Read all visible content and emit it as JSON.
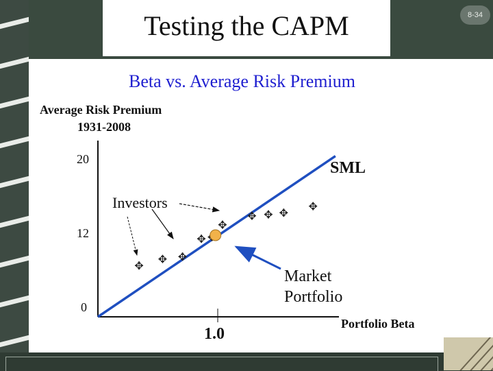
{
  "slide": {
    "title": "Testing the CAPM",
    "number": "8-34"
  },
  "chart_data": {
    "type": "scatter",
    "title": "Beta vs. Average Risk Premium",
    "ylabel_line1": "Average Risk Premium",
    "ylabel_line2": "1931-2008",
    "xlabel": "Portfolio Beta",
    "y_ticks": [
      "20",
      "12",
      "0"
    ],
    "x_ticks": [
      "1.0"
    ],
    "xlim": [
      0,
      2.05
    ],
    "ylim": [
      0,
      23
    ],
    "line": {
      "name": "SML",
      "x": [
        0,
        2.02
      ],
      "y": [
        0,
        19.7
      ]
    },
    "market_portfolio": {
      "x": 1.0,
      "y": 10.0
    },
    "investors_points": [
      {
        "x": 0.35,
        "y": 6.2
      },
      {
        "x": 0.55,
        "y": 7.0
      },
      {
        "x": 0.72,
        "y": 7.3
      },
      {
        "x": 0.88,
        "y": 9.5
      },
      {
        "x": 0.97,
        "y": 9.7
      },
      {
        "x": 1.06,
        "y": 11.2
      },
      {
        "x": 1.31,
        "y": 12.3
      },
      {
        "x": 1.45,
        "y": 12.5
      },
      {
        "x": 1.58,
        "y": 12.7
      },
      {
        "x": 1.83,
        "y": 13.5
      }
    ],
    "annotations": {
      "investors": "Investors",
      "market_line1": "Market",
      "market_line2": "Portfolio"
    },
    "colors": {
      "line": "#1f4fc0",
      "market": "#f2b24a",
      "title": "#2020d0"
    }
  }
}
